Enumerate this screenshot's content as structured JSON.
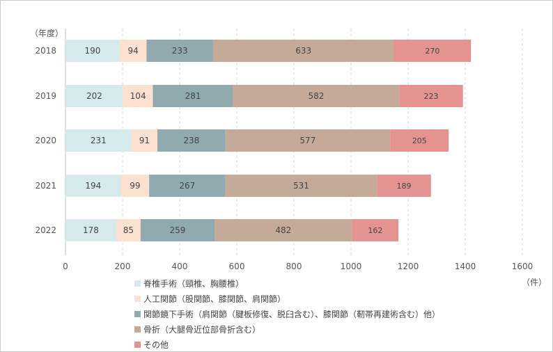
{
  "chart_data": {
    "type": "bar",
    "orientation": "horizontal",
    "stacked": true,
    "categories": [
      "2018",
      "2019",
      "2020",
      "2021",
      "2022"
    ],
    "series": [
      {
        "name": "脊椎手術（頸椎、胸腰椎）",
        "color": "#d6e9ec",
        "values": [
          190,
          202,
          231,
          194,
          178
        ]
      },
      {
        "name": "人工関節（股関節、膝関節、肩関節）",
        "color": "#fde1d0",
        "values": [
          94,
          104,
          91,
          99,
          85
        ]
      },
      {
        "name": "関節鏡下手術（肩関節（腱板修復、脱臼含む）、膝関節（靭帯再建術含む）他）",
        "color": "#91aab0",
        "values": [
          233,
          281,
          238,
          267,
          259
        ]
      },
      {
        "name": "骨折（大腿骨近位部骨折含む）",
        "color": "#c5aa99",
        "values": [
          633,
          582,
          577,
          531,
          482
        ]
      },
      {
        "name": "その他",
        "color": "#e59391",
        "values": [
          270,
          223,
          205,
          189,
          162
        ]
      }
    ],
    "xlim": [
      0,
      1600
    ],
    "xticks": [
      0,
      200,
      400,
      600,
      800,
      1000,
      1200,
      1400,
      1600
    ],
    "xlabel_unit": "（件）",
    "ylabel_unit": "（年度）",
    "grid": "vertical-dashed",
    "legend_position": "bottom-left"
  }
}
